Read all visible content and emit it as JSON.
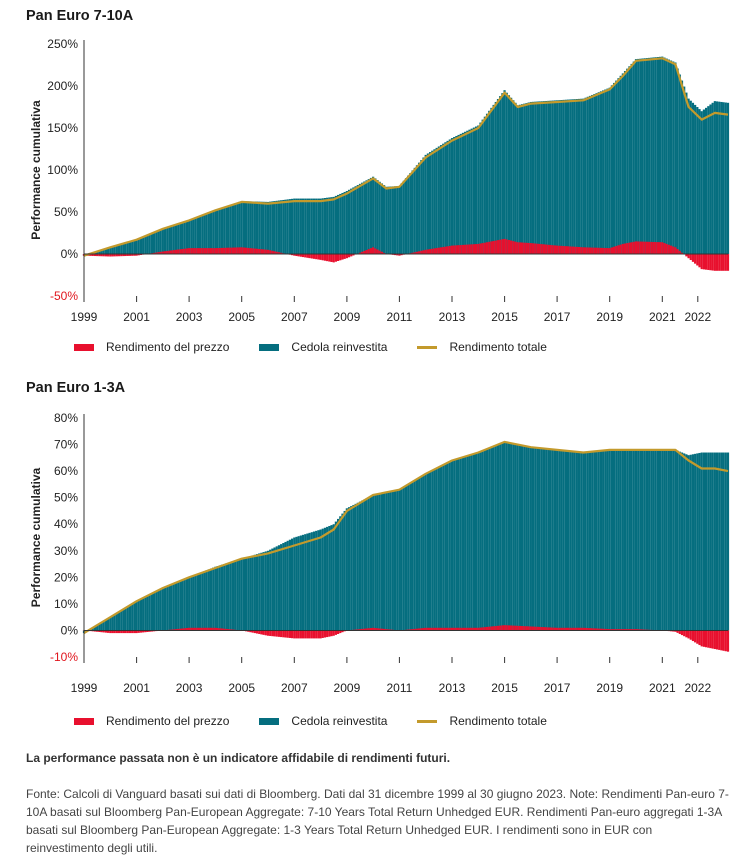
{
  "colors": {
    "price": "#e8102e",
    "coupon": "#056e7f",
    "total": "#c39a2c",
    "axis": "#333333",
    "neg_label": "#e0151d"
  },
  "legend": {
    "price": "Rendimento del prezzo",
    "coupon": "Cedola reinvestita",
    "total": "Rendimento totale"
  },
  "disclaimer": "La performance passata non è un indicatore affidabile di rendimenti futuri.",
  "source_note": "Fonte: Calcoli di Vanguard basati sui dati di Bloomberg. Dati dal 31 dicembre 1999 al 30 giugno 2023. Note: Rendimenti Pan-euro 7-10A basati sul Bloomberg Pan-European Aggregate: 7-10 Years Total Return Unhedged EUR. Rendimenti Pan-euro aggregati 1-3A basati sul Bloomberg Pan-European Aggregate: 1-3 Years Total Return Unhedged EUR. I rendimenti sono in EUR con reinvestimento degli utili.",
  "chart_data": [
    {
      "type": "area",
      "title": "Pan Euro 7-10A",
      "ylabel": "Performance cumulativa",
      "ylim": [
        -50,
        250
      ],
      "yticks": [
        -50,
        0,
        50,
        100,
        150,
        200,
        250
      ],
      "xlim": [
        1999.0,
        2023.5
      ],
      "xticks": [
        "1999",
        "2001",
        "2003",
        "2005",
        "2007",
        "2009",
        "2011",
        "2013",
        "2015",
        "2017",
        "2019",
        "2021",
        "2022"
      ],
      "x": [
        1999.0,
        2000.0,
        2001.0,
        2002.0,
        2003.0,
        2004.0,
        2005.0,
        2006.0,
        2007.0,
        2008.0,
        2008.5,
        2009.0,
        2010.0,
        2010.5,
        2011.0,
        2012.0,
        2013.0,
        2014.0,
        2015.0,
        2015.5,
        2016.0,
        2017.0,
        2018.0,
        2019.0,
        2019.5,
        2020.0,
        2021.0,
        2021.5,
        2022.0,
        2022.5,
        2023.0,
        2023.5
      ],
      "series": [
        {
          "name": "Rendimento del prezzo",
          "values": [
            -2,
            -3,
            -2,
            3,
            7,
            7,
            8,
            5,
            -2,
            -7,
            -10,
            -5,
            8,
            0,
            -2,
            5,
            10,
            12,
            18,
            14,
            13,
            10,
            8,
            7,
            12,
            15,
            14,
            8,
            -5,
            -18,
            -20,
            -20
          ]
        },
        {
          "name": "Cedola reinvestita",
          "values": [
            -2,
            8,
            17,
            30,
            40,
            52,
            63,
            62,
            66,
            66,
            68,
            75,
            92,
            80,
            81,
            118,
            138,
            153,
            195,
            177,
            181,
            183,
            185,
            198,
            215,
            232,
            235,
            228,
            185,
            170,
            182,
            180
          ]
        },
        {
          "name": "Rendimento totale",
          "values": [
            -2,
            8,
            17,
            30,
            40,
            52,
            62,
            60,
            63,
            63,
            65,
            72,
            90,
            78,
            80,
            115,
            135,
            150,
            192,
            175,
            179,
            181,
            183,
            196,
            212,
            230,
            233,
            226,
            175,
            160,
            168,
            166
          ]
        }
      ]
    },
    {
      "type": "area",
      "title": "Pan Euro 1-3A",
      "ylabel": "Performance cumulativa",
      "ylim": [
        -10,
        80
      ],
      "yticks": [
        -10,
        0,
        10,
        20,
        30,
        40,
        50,
        60,
        70,
        80
      ],
      "xlim": [
        1999.0,
        2023.5
      ],
      "xticks": [
        "1999",
        "2001",
        "2003",
        "2005",
        "2007",
        "2009",
        "2011",
        "2013",
        "2015",
        "2017",
        "2019",
        "2021",
        "2022"
      ],
      "x": [
        1999.0,
        2000.0,
        2001.0,
        2002.0,
        2003.0,
        2004.0,
        2005.0,
        2006.0,
        2007.0,
        2008.0,
        2008.5,
        2009.0,
        2010.0,
        2011.0,
        2012.0,
        2013.0,
        2014.0,
        2015.0,
        2016.0,
        2017.0,
        2018.0,
        2019.0,
        2020.0,
        2021.0,
        2021.5,
        2022.0,
        2022.5,
        2023.0,
        2023.5
      ],
      "series": [
        {
          "name": "Rendimento del prezzo",
          "values": [
            0,
            -1,
            -1,
            0,
            1,
            1,
            0,
            -2,
            -3,
            -3,
            -2,
            0,
            1,
            0,
            1,
            1,
            1,
            2,
            1.5,
            1,
            1,
            0.5,
            0.5,
            0,
            -0.5,
            -3,
            -6,
            -7,
            -8
          ]
        },
        {
          "name": "Cedola reinvestita",
          "values": [
            -1,
            5,
            11,
            16,
            20,
            24,
            27,
            30,
            35,
            38,
            40,
            46,
            51,
            53,
            59,
            64,
            67,
            71,
            69,
            68,
            67,
            68,
            68,
            68,
            68,
            66,
            67,
            67,
            67
          ]
        },
        {
          "name": "Rendimento totale",
          "values": [
            -1,
            5,
            11,
            16,
            20,
            23.5,
            27,
            29,
            32,
            35,
            38,
            45,
            51,
            53,
            59,
            64,
            67,
            71,
            69,
            68,
            67,
            68,
            68,
            68,
            68,
            64,
            61,
            61,
            60
          ]
        }
      ]
    }
  ]
}
